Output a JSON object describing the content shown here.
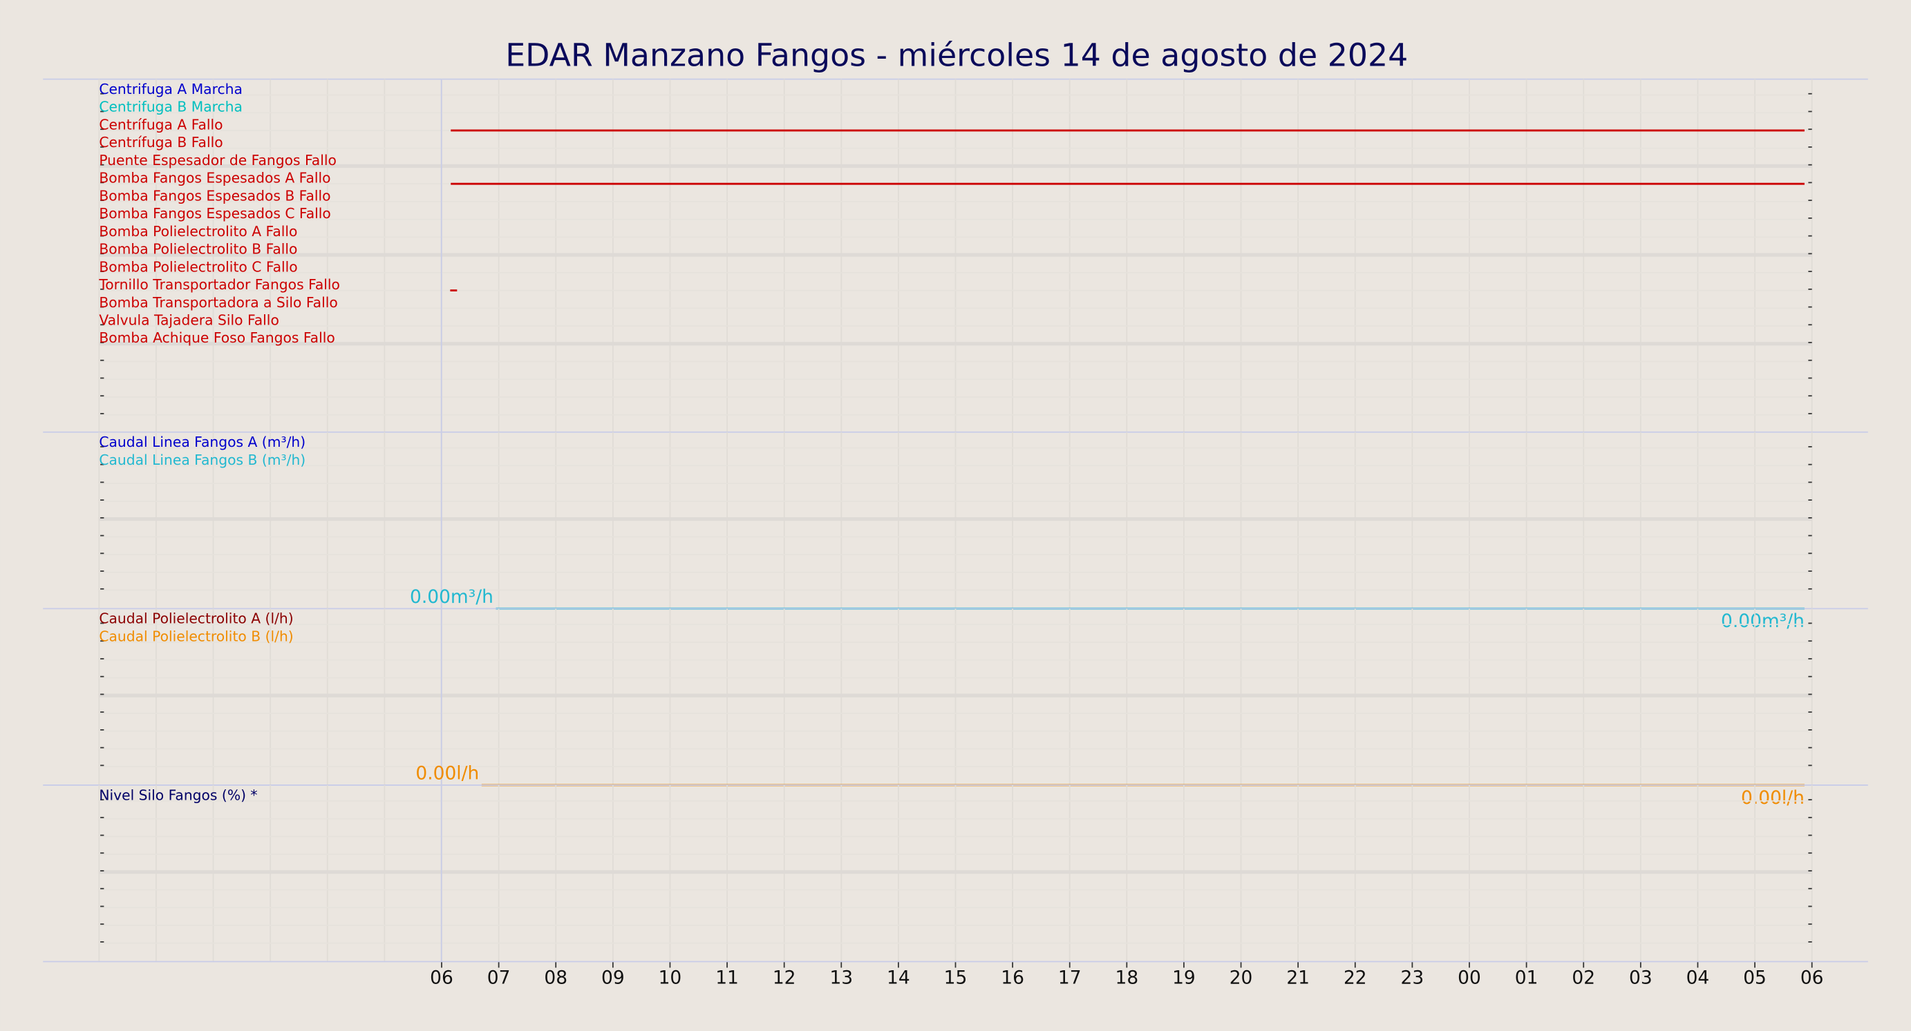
{
  "chart_data": [
    {
      "type": "line",
      "title": "EDAR Manzano Fangos   -   miércoles 14 de agosto de 2024",
      "xlim": [
        0,
        30
      ],
      "series": [
        {
          "name": "Centrifuga A Marcha",
          "color": "#0000cc"
        },
        {
          "name": "Centrifuga B Marcha",
          "color": "#00bfbf"
        },
        {
          "name": "Centrífuga A Fallo",
          "color": "#cc0000",
          "x": [
            6.16,
            29.87
          ],
          "values": [
            1,
            1
          ]
        },
        {
          "name": "Centrífuga B Fallo",
          "color": "#cc0000"
        },
        {
          "name": "Puente Espesador de Fangos Fallo",
          "color": "#cc0000"
        },
        {
          "name": "Bomba Fangos Espesados A Fallo",
          "color": "#cc0000",
          "x": [
            6.16,
            29.87
          ],
          "values": [
            1,
            1
          ]
        },
        {
          "name": "Bomba Fangos Espesados B Fallo",
          "color": "#cc0000"
        },
        {
          "name": "Bomba Fangos Espesados C Fallo",
          "color": "#cc0000"
        },
        {
          "name": "Bomba Polielectrolito A Fallo",
          "color": "#cc0000"
        },
        {
          "name": "Bomba Polielectrolito B Fallo",
          "color": "#cc0000"
        },
        {
          "name": "Bomba Polielectrolito C Fallo",
          "color": "#cc0000"
        },
        {
          "name": "Tornillo Transportador Fangos Fallo",
          "color": "#cc0000",
          "x": [
            6.15,
            6.27
          ],
          "values": [
            1,
            1
          ]
        },
        {
          "name": "Bomba Transportadora a Silo Fallo",
          "color": "#cc0000"
        },
        {
          "name": "Valvula Tajadera Silo Fallo",
          "color": "#cc0000"
        },
        {
          "name": "Bomba Achique Foso Fangos Fallo",
          "color": "#cc0000"
        }
      ]
    },
    {
      "type": "line",
      "xlim": [
        0,
        30
      ],
      "ylim": [
        0,
        1
      ],
      "series": [
        {
          "name": "Caudal Linea Fangos A (m³/h)",
          "color": "#0000cc"
        },
        {
          "name": "Caudal Linea Fangos B (m³/h)",
          "color": "#22b8d0",
          "x": [
            6.95,
            29.87
          ],
          "values": [
            0,
            0
          ],
          "value_labels": [
            "0.00m³/h",
            "0.00m³/h"
          ]
        }
      ]
    },
    {
      "type": "line",
      "xlim": [
        0,
        30
      ],
      "ylim": [
        0,
        1
      ],
      "series": [
        {
          "name": "Caudal Polielectrolito A (l/h)",
          "color": "#8b0000"
        },
        {
          "name": "Caudal Polielectrolito B (l/h)",
          "color": "#f08c00",
          "x": [
            6.7,
            29.87
          ],
          "values": [
            0,
            0
          ],
          "value_labels": [
            "0.00l/h",
            "0.00l/h"
          ]
        }
      ]
    },
    {
      "type": "line",
      "xlim": [
        0,
        30
      ],
      "ylim": [
        0,
        1
      ],
      "series": [
        {
          "name": "Nivel Silo Fangos (%) *",
          "color": "#000066"
        }
      ],
      "xticks": [
        {
          "value": 6,
          "label": "06"
        },
        {
          "value": 7,
          "label": "07"
        },
        {
          "value": 8,
          "label": "08"
        },
        {
          "value": 9,
          "label": "09"
        },
        10,
        11,
        12,
        13,
        14,
        15,
        16,
        17,
        18,
        19,
        20,
        21,
        22,
        23,
        {
          "value": 24,
          "label": "00"
        },
        {
          "value": 25,
          "label": "01"
        },
        {
          "value": 26,
          "label": "02"
        },
        {
          "value": 27,
          "label": "03"
        },
        {
          "value": 28,
          "label": "04"
        },
        {
          "value": 29,
          "label": "05"
        },
        {
          "value": 30,
          "label": "06"
        }
      ]
    }
  ]
}
